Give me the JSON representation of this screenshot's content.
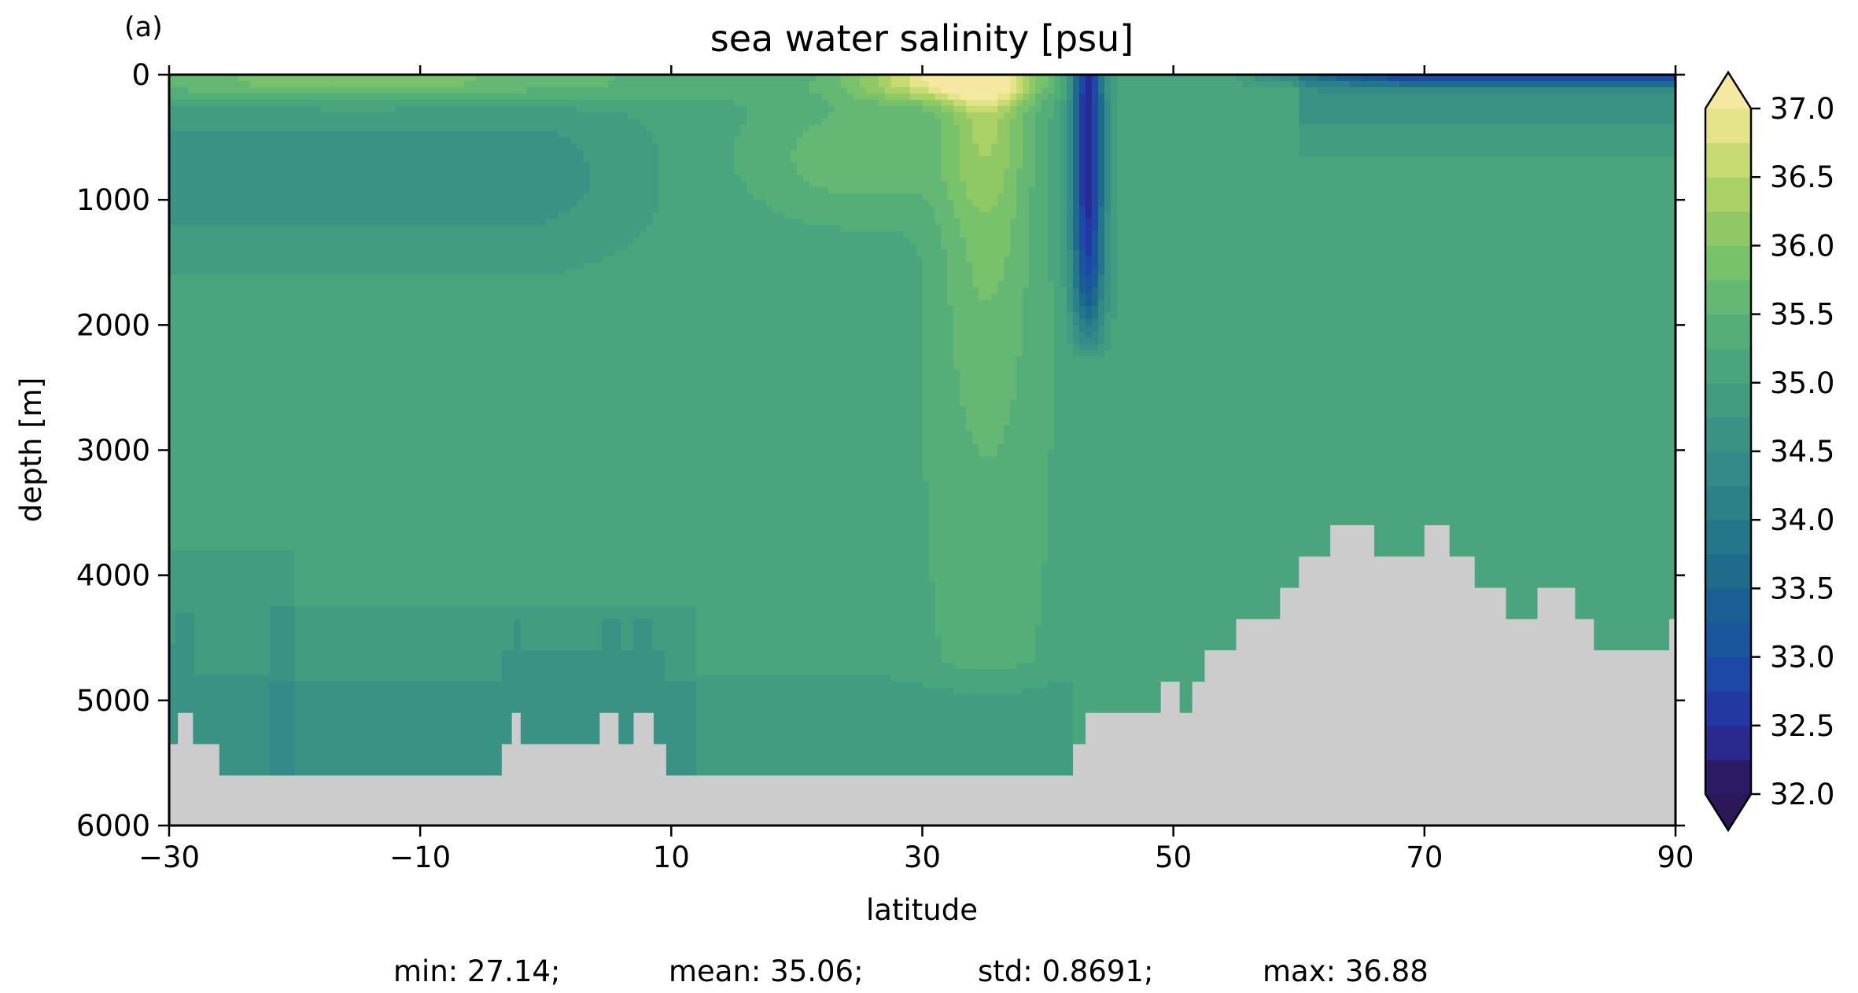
{
  "panel_label": "(a)",
  "chart_data": {
    "type": "heatmap",
    "title": "sea water salinity [psu]",
    "xlabel": "latitude",
    "ylabel": "depth [m]",
    "xlim": [
      -30,
      90
    ],
    "ylim": [
      6000,
      0
    ],
    "x_ticks": [
      -30,
      -10,
      10,
      30,
      50,
      70,
      90
    ],
    "x_tick_labels": [
      "−30",
      "−10",
      "10",
      "30",
      "50",
      "70",
      "90"
    ],
    "y_ticks": [
      0,
      1000,
      2000,
      3000,
      4000,
      5000,
      6000
    ],
    "y_tick_labels": [
      "0",
      "1000",
      "2000",
      "3000",
      "4000",
      "5000",
      "6000"
    ],
    "colorbar": {
      "levels": [
        32.0,
        32.25,
        32.5,
        32.75,
        33.0,
        33.25,
        33.5,
        33.75,
        34.0,
        34.25,
        34.5,
        34.75,
        35.0,
        35.25,
        35.5,
        35.75,
        36.0,
        36.25,
        36.5,
        36.75,
        37.0
      ],
      "tick_values": [
        32.0,
        32.5,
        33.0,
        33.5,
        34.0,
        34.5,
        35.0,
        35.5,
        36.0,
        36.5,
        37.0
      ],
      "tick_labels": [
        "32.0",
        "32.5",
        "33.0",
        "33.5",
        "34.0",
        "34.5",
        "35.0",
        "35.5",
        "36.0",
        "36.5",
        "37.0"
      ],
      "extend": "both",
      "colors": {
        "under": "#2a1858",
        "over": "#f5e8a0",
        "palette": [
          "#2c1a64",
          "#2a2a8e",
          "#2338a2",
          "#1d48a8",
          "#1a569e",
          "#195f94",
          "#1e6b8c",
          "#24768a",
          "#2c8189",
          "#338a87",
          "#3a9284",
          "#429c80",
          "#4aa57c",
          "#54ae78",
          "#64b873",
          "#78c26b",
          "#90c964",
          "#aad166",
          "#c8db72",
          "#e5e48a"
        ]
      }
    },
    "land_color": "#cccccc",
    "field_description": "latitude-depth section: ~35.0 psu in the interior, ~34.5-34.75 near the bottom south of 42N and upper layer south of 10S, high-salinity (>36) tongue at 30-40N near the surface, low-salinity (<33) column at 42-44N down to ~2300 m, fresh surface layer north of 55N",
    "bathymetry": {
      "x": [
        -30,
        -29.5,
        -29.3,
        -28.5,
        -28.1,
        -26.0,
        -27.9,
        -3.5,
        -2.7,
        -2.0,
        4.0,
        4.3,
        5.8,
        7.0,
        8.6,
        9.6,
        10.5,
        15.0,
        42.0,
        43.0,
        48.0,
        49.0,
        50.5,
        51.5,
        52.5,
        55.0,
        58.5,
        60.0,
        62.5,
        64.5,
        66.0,
        70.0,
        72.0,
        74.0,
        76.5,
        79.0,
        82.0,
        83.5,
        85.5,
        87.5,
        89.5,
        90.0
      ],
      "depth": [
        5350,
        5350,
        5100,
        5100,
        5350,
        5600,
        5600,
        5350,
        5100,
        5350,
        5350,
        5100,
        5350,
        5100,
        5350,
        5600,
        5600,
        5600,
        5350,
        5100,
        5100,
        4850,
        5100,
        4850,
        4600,
        4350,
        4100,
        3850,
        3600,
        3600,
        3850,
        3600,
        3850,
        4100,
        4350,
        4100,
        4350,
        4600,
        4600,
        4600,
        4350,
        4350
      ]
    },
    "summary": {
      "min": "min: 27.14;",
      "mean": "mean: 35.06;",
      "std": "std: 0.8691;",
      "max": "max: 36.88"
    }
  }
}
